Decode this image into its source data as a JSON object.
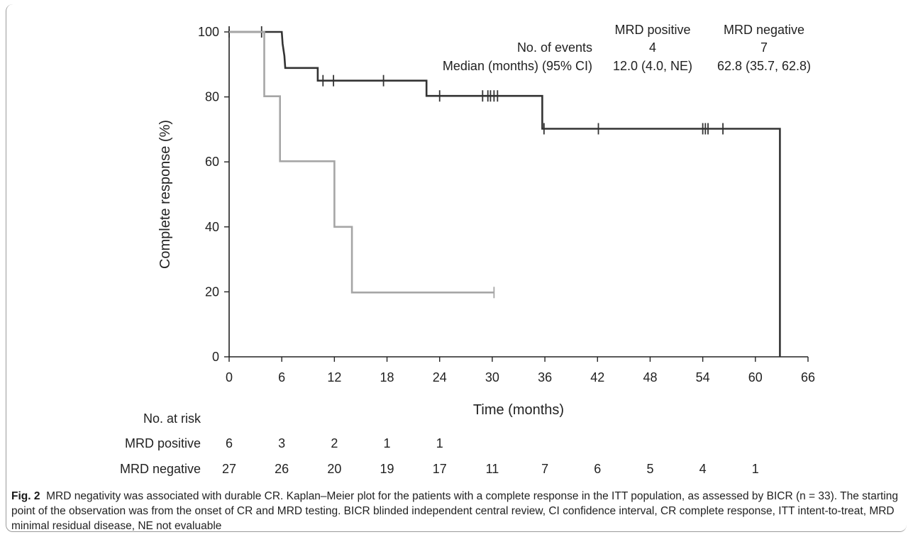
{
  "chart_data": {
    "type": "line",
    "subtype": "kaplan-meier",
    "xlabel": "Time (months)",
    "ylabel": "Complete response (%)",
    "xlim": [
      0,
      66
    ],
    "ylim": [
      0,
      100
    ],
    "xticks": [
      "0",
      "6",
      "12",
      "18",
      "24",
      "30",
      "36",
      "42",
      "48",
      "54",
      "60",
      "66"
    ],
    "yticks": [
      "0",
      "20",
      "40",
      "60",
      "80",
      "100"
    ],
    "grid": false,
    "series": [
      {
        "name": "MRD negative",
        "color": "#333333",
        "steps": [
          [
            0,
            100
          ],
          [
            6,
            100
          ],
          [
            6.1,
            96.3
          ],
          [
            6.3,
            92.6
          ],
          [
            6.4,
            88.9
          ],
          [
            10.1,
            88.9
          ],
          [
            10.1,
            85.0
          ],
          [
            22.5,
            85.0
          ],
          [
            22.5,
            80.3
          ],
          [
            35.7,
            80.3
          ],
          [
            35.7,
            70.2
          ],
          [
            62.8,
            70.2
          ],
          [
            62.8,
            0
          ]
        ],
        "censored": [
          [
            0,
            100
          ],
          [
            3.7,
            100
          ],
          [
            10.7,
            85.0
          ],
          [
            11.9,
            85.0
          ],
          [
            17.6,
            85.0
          ],
          [
            24.0,
            80.3
          ],
          [
            28.9,
            80.3
          ],
          [
            29.5,
            80.3
          ],
          [
            29.8,
            80.3
          ],
          [
            30.2,
            80.3
          ],
          [
            30.6,
            80.3
          ],
          [
            35.9,
            70.2
          ],
          [
            42.1,
            70.2
          ],
          [
            54.0,
            70.2
          ],
          [
            54.3,
            70.2
          ],
          [
            54.6,
            70.2
          ],
          [
            56.3,
            70.2
          ]
        ]
      },
      {
        "name": "MRD positive",
        "color": "#a6a6a6",
        "steps": [
          [
            0,
            100
          ],
          [
            4.0,
            100
          ],
          [
            4.0,
            80.2
          ],
          [
            5.8,
            80.2
          ],
          [
            5.8,
            60.2
          ],
          [
            12.0,
            60.2
          ],
          [
            12.0,
            40.0
          ],
          [
            14.0,
            40.0
          ],
          [
            14.0,
            19.8
          ],
          [
            30.2,
            19.8
          ]
        ],
        "censored": [
          [
            30.2,
            19.8
          ]
        ]
      }
    ],
    "legend_table": {
      "headers": [
        "",
        "MRD positive",
        "MRD negative"
      ],
      "rows": [
        [
          "No. of events",
          "4",
          "7"
        ],
        [
          "Median (months) (95% CI)",
          "12.0 (4.0, NE)",
          "62.8 (35.7, 62.8)"
        ]
      ]
    },
    "risk_table": {
      "title": "No. at risk",
      "rows": [
        {
          "label": "MRD positive",
          "values": [
            "6",
            "3",
            "2",
            "1",
            "1"
          ]
        },
        {
          "label": "MRD negative",
          "values": [
            "27",
            "26",
            "20",
            "19",
            "17",
            "11",
            "7",
            "6",
            "5",
            "4",
            "1"
          ]
        }
      ]
    }
  },
  "caption": {
    "label": "Fig. 2",
    "text": "MRD negativity was associated with durable CR. Kaplan–Meier plot for the patients with a complete response in the ITT population, as assessed by BICR (n = 33). The starting point of the observation was from the onset of CR and MRD testing. BICR blinded independent central review, CI confidence interval, CR complete response, ITT intent-to-treat, MRD minimal residual disease, NE not evaluable"
  }
}
